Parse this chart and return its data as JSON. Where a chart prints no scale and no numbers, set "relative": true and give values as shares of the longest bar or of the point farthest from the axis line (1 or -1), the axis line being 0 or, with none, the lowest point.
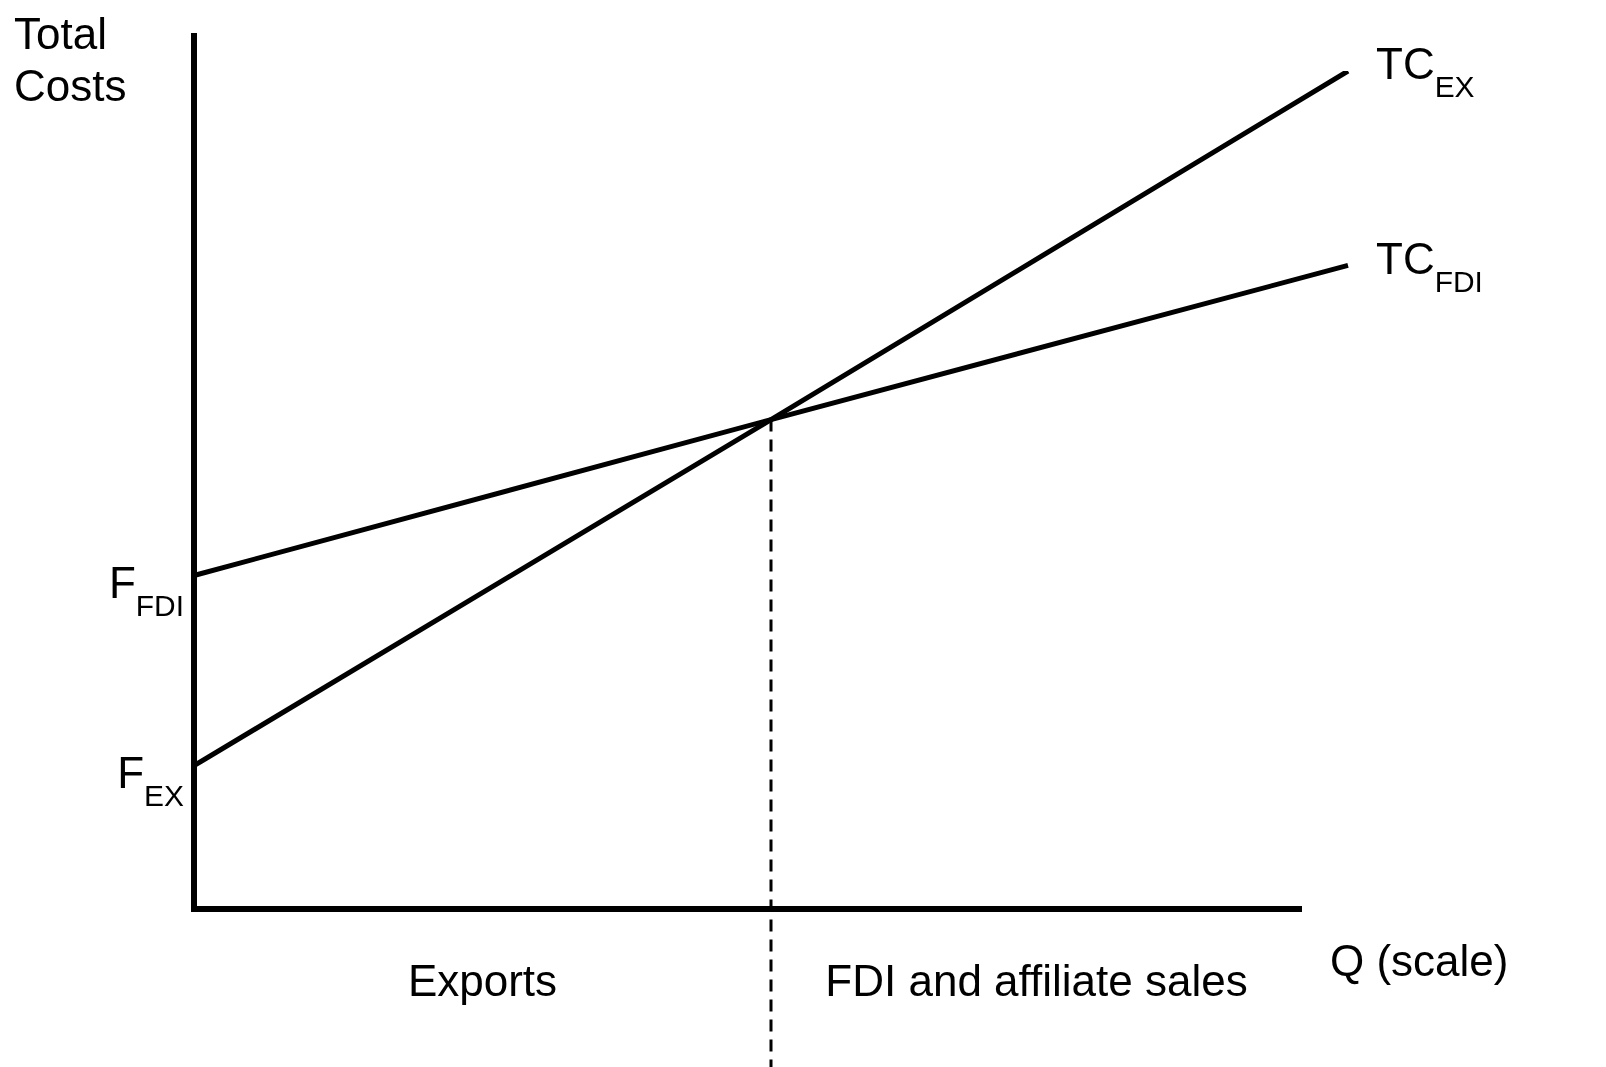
{
  "chart_data": {
    "type": "line",
    "relative": true,
    "ylabel": "Total Costs",
    "xlabel": "Q (scale)",
    "categories": [
      null,
      null,
      null
    ],
    "legend": false,
    "marker": "none",
    "line_style": "solid",
    "series": [
      {
        "name": "TC$_{EX}$",
        "color": "#000000",
        "values": [
          0.171,
          0.584,
          1
        ]
      },
      {
        "name": "TC$_{FDI}$",
        "color": "#000000",
        "values": [
          0.398,
          0.584,
          0.768
        ]
      }
    ],
    "ref_lines": [
      {
        "axis": "x",
        "line_style": "dashed",
        "color": "#000000"
      }
    ],
    "annotations": [
      "Exports",
      "FDI and affiliate sales",
      "F$_{FDI}$",
      "F$_{EX}$"
    ]
  }
}
